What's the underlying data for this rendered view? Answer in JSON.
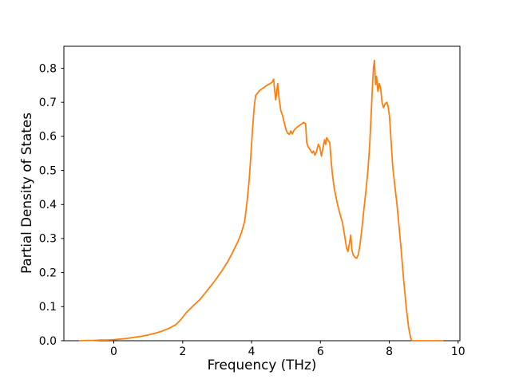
{
  "figure": {
    "background": "#ffffff",
    "axis_color": "#000000"
  },
  "chart_data": {
    "type": "line",
    "title": "",
    "xlabel": "Frequency (THz)",
    "ylabel": "Partial Density of States",
    "xlim": [
      -1.45,
      10.05
    ],
    "ylim": [
      0,
      0.8645
    ],
    "xticks": [
      0,
      2,
      4,
      6,
      8,
      10
    ],
    "yticks": [
      0.0,
      0.1,
      0.2,
      0.3,
      0.4,
      0.5,
      0.6,
      0.7,
      0.8
    ],
    "grid": false,
    "legend": "none",
    "series": [
      {
        "name": "partial-dos",
        "color": "#ff7f0e",
        "line_width": 1.8,
        "points": [
          [
            -0.99,
            0.0
          ],
          [
            -0.8,
            0.001
          ],
          [
            -0.6,
            0.001
          ],
          [
            -0.4,
            0.002
          ],
          [
            -0.2,
            0.002
          ],
          [
            0.0,
            0.003
          ],
          [
            0.2,
            0.005
          ],
          [
            0.4,
            0.007
          ],
          [
            0.6,
            0.01
          ],
          [
            0.8,
            0.013
          ],
          [
            1.0,
            0.017
          ],
          [
            1.2,
            0.022
          ],
          [
            1.4,
            0.028
          ],
          [
            1.6,
            0.036
          ],
          [
            1.8,
            0.047
          ],
          [
            1.95,
            0.062
          ],
          [
            2.1,
            0.082
          ],
          [
            2.3,
            0.102
          ],
          [
            2.5,
            0.121
          ],
          [
            2.7,
            0.146
          ],
          [
            2.85,
            0.165
          ],
          [
            3.0,
            0.185
          ],
          [
            3.15,
            0.207
          ],
          [
            3.3,
            0.231
          ],
          [
            3.45,
            0.259
          ],
          [
            3.6,
            0.29
          ],
          [
            3.7,
            0.315
          ],
          [
            3.8,
            0.35
          ],
          [
            3.87,
            0.41
          ],
          [
            3.93,
            0.47
          ],
          [
            3.98,
            0.545
          ],
          [
            4.03,
            0.625
          ],
          [
            4.08,
            0.69
          ],
          [
            4.12,
            0.72
          ],
          [
            4.22,
            0.733
          ],
          [
            4.32,
            0.741
          ],
          [
            4.42,
            0.748
          ],
          [
            4.52,
            0.754
          ],
          [
            4.6,
            0.759
          ],
          [
            4.64,
            0.768
          ],
          [
            4.67,
            0.735
          ],
          [
            4.7,
            0.707
          ],
          [
            4.73,
            0.728
          ],
          [
            4.76,
            0.755
          ],
          [
            4.8,
            0.71
          ],
          [
            4.85,
            0.676
          ],
          [
            4.9,
            0.661
          ],
          [
            4.95,
            0.64
          ],
          [
            5.0,
            0.62
          ],
          [
            5.05,
            0.609
          ],
          [
            5.1,
            0.606
          ],
          [
            5.14,
            0.616
          ],
          [
            5.18,
            0.607
          ],
          [
            5.24,
            0.619
          ],
          [
            5.32,
            0.627
          ],
          [
            5.42,
            0.634
          ],
          [
            5.52,
            0.641
          ],
          [
            5.57,
            0.637
          ],
          [
            5.6,
            0.583
          ],
          [
            5.64,
            0.57
          ],
          [
            5.7,
            0.561
          ],
          [
            5.76,
            0.551
          ],
          [
            5.8,
            0.557
          ],
          [
            5.84,
            0.545
          ],
          [
            5.88,
            0.553
          ],
          [
            5.94,
            0.577
          ],
          [
            5.98,
            0.568
          ],
          [
            6.03,
            0.542
          ],
          [
            6.08,
            0.57
          ],
          [
            6.12,
            0.59
          ],
          [
            6.15,
            0.576
          ],
          [
            6.18,
            0.596
          ],
          [
            6.22,
            0.589
          ],
          [
            6.27,
            0.582
          ],
          [
            6.31,
            0.53
          ],
          [
            6.35,
            0.487
          ],
          [
            6.4,
            0.448
          ],
          [
            6.46,
            0.417
          ],
          [
            6.52,
            0.39
          ],
          [
            6.58,
            0.368
          ],
          [
            6.64,
            0.347
          ],
          [
            6.7,
            0.31
          ],
          [
            6.76,
            0.272
          ],
          [
            6.8,
            0.262
          ],
          [
            6.84,
            0.285
          ],
          [
            6.88,
            0.31
          ],
          [
            6.91,
            0.268
          ],
          [
            6.95,
            0.252
          ],
          [
            7.0,
            0.245
          ],
          [
            7.05,
            0.242
          ],
          [
            7.1,
            0.253
          ],
          [
            7.14,
            0.276
          ],
          [
            7.2,
            0.325
          ],
          [
            7.26,
            0.385
          ],
          [
            7.32,
            0.44
          ],
          [
            7.38,
            0.5
          ],
          [
            7.43,
            0.575
          ],
          [
            7.47,
            0.655
          ],
          [
            7.51,
            0.745
          ],
          [
            7.54,
            0.8
          ],
          [
            7.57,
            0.823
          ],
          [
            7.6,
            0.752
          ],
          [
            7.63,
            0.776
          ],
          [
            7.67,
            0.732
          ],
          [
            7.71,
            0.755
          ],
          [
            7.75,
            0.74
          ],
          [
            7.79,
            0.7
          ],
          [
            7.83,
            0.684
          ],
          [
            7.88,
            0.696
          ],
          [
            7.93,
            0.7
          ],
          [
            7.97,
            0.685
          ],
          [
            8.01,
            0.654
          ],
          [
            8.05,
            0.59
          ],
          [
            8.1,
            0.51
          ],
          [
            8.16,
            0.455
          ],
          [
            8.22,
            0.402
          ],
          [
            8.28,
            0.338
          ],
          [
            8.35,
            0.26
          ],
          [
            8.42,
            0.175
          ],
          [
            8.49,
            0.1
          ],
          [
            8.56,
            0.04
          ],
          [
            8.62,
            0.008
          ],
          [
            8.66,
            0.0
          ],
          [
            8.85,
            0.0
          ],
          [
            9.1,
            0.0
          ],
          [
            9.35,
            0.0
          ],
          [
            9.55,
            0.0
          ]
        ]
      }
    ]
  }
}
